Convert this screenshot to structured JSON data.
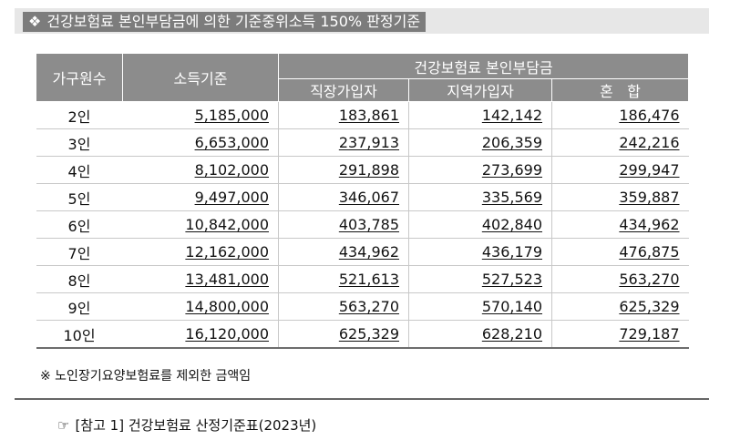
{
  "title": {
    "bullet": "❖",
    "text": "건강보험료 본인부담금에 의한 기준중위소득 150% 판정기준"
  },
  "table": {
    "headers": {
      "household_size": "가구원수",
      "income_standard": "소득기준",
      "premium_group": "건강보험료 본인부담금",
      "employee": "직장가입자",
      "regional": "지역가입자",
      "mixed": "혼   합"
    },
    "rows": [
      {
        "size": "2인",
        "income": "5,185,000",
        "employee": "183,861",
        "regional": "142,142",
        "mixed": "186,476"
      },
      {
        "size": "3인",
        "income": "6,653,000",
        "employee": "237,913",
        "regional": "206,359",
        "mixed": "242,216"
      },
      {
        "size": "4인",
        "income": "8,102,000",
        "employee": "291,898",
        "regional": "273,699",
        "mixed": "299,947"
      },
      {
        "size": "5인",
        "income": "9,497,000",
        "employee": "346,067",
        "regional": "335,569",
        "mixed": "359,887"
      },
      {
        "size": "6인",
        "income": "10,842,000",
        "employee": "403,785",
        "regional": "402,840",
        "mixed": "434,962"
      },
      {
        "size": "7인",
        "income": "12,162,000",
        "employee": "434,962",
        "regional": "436,179",
        "mixed": "476,875"
      },
      {
        "size": "8인",
        "income": "13,481,000",
        "employee": "521,613",
        "regional": "527,523",
        "mixed": "563,270"
      },
      {
        "size": "9인",
        "income": "14,800,000",
        "employee": "563,270",
        "regional": "570,140",
        "mixed": "625,329"
      },
      {
        "size": "10인",
        "income": "16,120,000",
        "employee": "625,329",
        "regional": "628,210",
        "mixed": "729,187"
      }
    ]
  },
  "note": "※ 노인장기요양보험료를 제외한 금액임",
  "reference": {
    "icon": "☞",
    "text": "[참고 1] 건강보험료 산정기준표(2023년)"
  },
  "colors": {
    "header_bg": "#8c8c8c",
    "title_bg": "#7c7c7c",
    "title_band": "#e7e7e7"
  }
}
